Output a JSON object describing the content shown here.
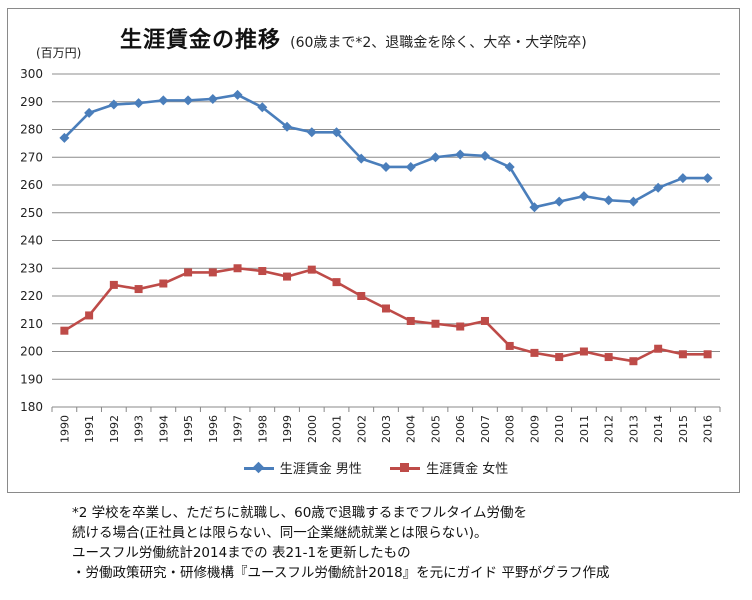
{
  "title": "生涯賃金の推移",
  "subtitle": "(60歳まで*2、退職金を除く、大卒・大学院卒)",
  "unit_label": "(百万円)",
  "chart_data": {
    "type": "line",
    "x": [
      "1990",
      "1991",
      "1992",
      "1993",
      "1994",
      "1995",
      "1996",
      "1997",
      "1998",
      "1999",
      "2000",
      "2001",
      "2002",
      "2003",
      "2004",
      "2005",
      "2006",
      "2007",
      "2008",
      "2009",
      "2010",
      "2011",
      "2012",
      "2013",
      "2014",
      "2015",
      "2016"
    ],
    "ylim": [
      180,
      300
    ],
    "yticks": [
      180,
      190,
      200,
      210,
      220,
      230,
      240,
      250,
      260,
      270,
      280,
      290,
      300
    ],
    "grid": true,
    "legend_position": "bottom",
    "series": [
      {
        "name": "生涯賃金 男性",
        "color": "#4a7ebb",
        "marker": "diamond",
        "values": [
          277,
          286,
          289,
          289.5,
          290.5,
          290.5,
          291,
          292.5,
          288,
          281,
          279,
          279,
          269.5,
          266.5,
          266.5,
          270,
          271,
          270.5,
          266.5,
          252,
          254,
          256,
          254.5,
          254,
          259,
          262.5,
          262.5
        ]
      },
      {
        "name": "生涯賃金 女性",
        "color": "#be4b48",
        "marker": "square",
        "values": [
          207.5,
          213,
          224,
          222.5,
          224.5,
          228.5,
          228.5,
          230,
          229,
          227,
          229.5,
          225,
          220,
          215.5,
          211,
          210,
          209,
          211,
          202,
          199.5,
          198,
          200,
          198,
          196.5,
          201,
          199,
          199
        ]
      }
    ]
  },
  "notes": [
    "*2 学校を卒業し、ただちに就職し、60歳で退職するまでフルタイム労働を",
    "続ける場合(正社員とは限らない、同一企業継続就業とは限らない)。",
    "ユースフル労働統計2014までの 表21-1を更新したもの",
    "・労働政策研究・研修機構『ユースフル労働統計2018』を元にガイド 平野がグラフ作成"
  ]
}
